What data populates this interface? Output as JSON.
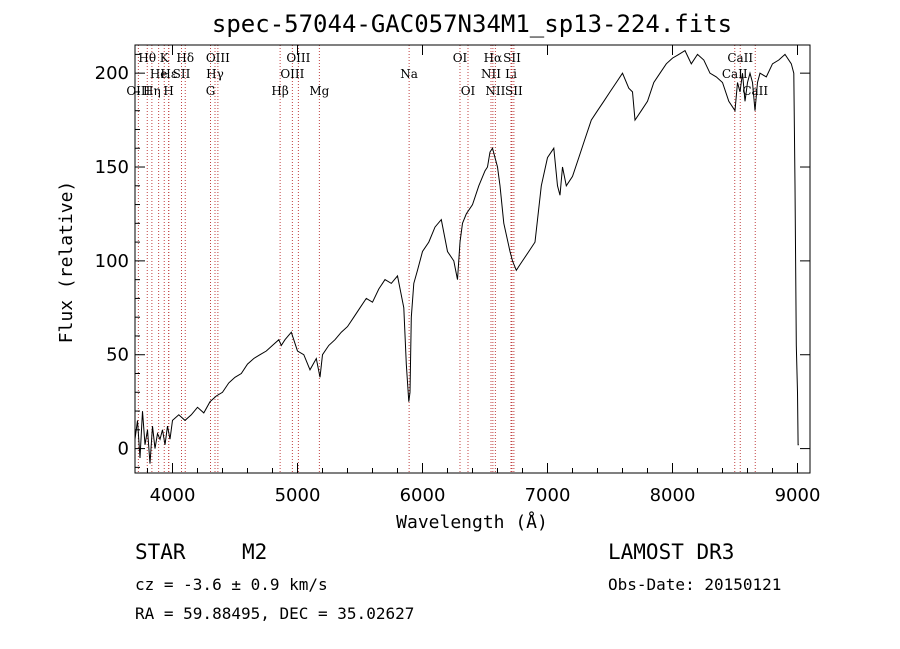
{
  "chart_data": {
    "type": "line",
    "title": "spec-57044-GAC057N34M1_sp13-224.fits",
    "xlabel": "Wavelength (Å)",
    "ylabel": "Flux (relative)",
    "xlim": [
      3700,
      9100
    ],
    "ylim": [
      -13,
      215
    ],
    "xticks": [
      4000,
      5000,
      6000,
      7000,
      8000,
      9000
    ],
    "yticks": [
      0,
      50,
      100,
      150,
      200
    ],
    "series": [
      {
        "name": "spectrum",
        "x": [
          3700,
          3720,
          3740,
          3760,
          3780,
          3800,
          3820,
          3840,
          3860,
          3880,
          3900,
          3920,
          3940,
          3960,
          3980,
          4000,
          4050,
          4100,
          4150,
          4200,
          4250,
          4300,
          4350,
          4400,
          4450,
          4500,
          4550,
          4600,
          4650,
          4700,
          4750,
          4800,
          4850,
          4870,
          4900,
          4950,
          5000,
          5050,
          5100,
          5150,
          5180,
          5200,
          5250,
          5300,
          5350,
          5400,
          5450,
          5500,
          5550,
          5600,
          5650,
          5700,
          5750,
          5800,
          5850,
          5870,
          5890,
          5900,
          5910,
          5930,
          5960,
          6000,
          6050,
          6100,
          6150,
          6200,
          6250,
          6280,
          6300,
          6320,
          6350,
          6400,
          6450,
          6500,
          6520,
          6540,
          6560,
          6580,
          6600,
          6620,
          6650,
          6700,
          6720,
          6750,
          6780,
          6800,
          6850,
          6900,
          6950,
          7000,
          7050,
          7080,
          7100,
          7120,
          7150,
          7200,
          7250,
          7300,
          7350,
          7400,
          7450,
          7500,
          7550,
          7600,
          7650,
          7680,
          7700,
          7750,
          7800,
          7850,
          7900,
          7950,
          8000,
          8050,
          8100,
          8150,
          8200,
          8250,
          8300,
          8350,
          8400,
          8450,
          8500,
          8520,
          8540,
          8560,
          8580,
          8600,
          8620,
          8640,
          8660,
          8680,
          8700,
          8750,
          8800,
          8850,
          8900,
          8950,
          8970,
          8980,
          8990,
          9000,
          9005,
          9010
        ],
        "y": [
          5,
          15,
          -5,
          20,
          2,
          10,
          -8,
          12,
          0,
          8,
          5,
          10,
          2,
          12,
          5,
          15,
          18,
          15,
          18,
          22,
          19,
          25,
          28,
          30,
          35,
          38,
          40,
          45,
          48,
          50,
          52,
          55,
          58,
          55,
          58,
          62,
          52,
          50,
          42,
          48,
          38,
          50,
          55,
          58,
          62,
          65,
          70,
          75,
          80,
          78,
          85,
          90,
          88,
          92,
          75,
          45,
          25,
          30,
          70,
          88,
          95,
          105,
          110,
          118,
          122,
          105,
          100,
          90,
          110,
          120,
          125,
          130,
          140,
          148,
          150,
          158,
          160,
          155,
          150,
          140,
          120,
          105,
          100,
          95,
          98,
          100,
          105,
          110,
          140,
          155,
          160,
          140,
          135,
          150,
          140,
          145,
          155,
          165,
          175,
          180,
          185,
          190,
          195,
          200,
          192,
          190,
          175,
          180,
          185,
          195,
          200,
          205,
          208,
          210,
          212,
          205,
          210,
          207,
          200,
          198,
          195,
          185,
          180,
          195,
          190,
          200,
          185,
          195,
          200,
          195,
          180,
          195,
          200,
          198,
          205,
          207,
          210,
          205,
          200,
          140,
          55,
          30,
          2,
          2
        ]
      }
    ],
    "spectral_lines": [
      {
        "label": "OIII",
        "x": 3727,
        "row": 3
      },
      {
        "label": "Hθ",
        "x": 3798,
        "row": 1
      },
      {
        "label": "Hη",
        "x": 3835,
        "row": 3
      },
      {
        "label": "He",
        "x": 3889,
        "row": 2
      },
      {
        "label": "K",
        "x": 3934,
        "row": 1
      },
      {
        "label": "H",
        "x": 3969,
        "row": 3
      },
      {
        "label": "Hε",
        "x": 3970,
        "row": 2
      },
      {
        "label": "SII",
        "x": 4072,
        "row": 2
      },
      {
        "label": "Hδ",
        "x": 4102,
        "row": 1
      },
      {
        "label": "G",
        "x": 4304,
        "row": 3
      },
      {
        "label": "Hγ",
        "x": 4340,
        "row": 2
      },
      {
        "label": "OIII",
        "x": 4363,
        "row": 1
      },
      {
        "label": "Hβ",
        "x": 4861,
        "row": 3
      },
      {
        "label": "OIII",
        "x": 4959,
        "row": 2
      },
      {
        "label": "OIII",
        "x": 5007,
        "row": 1
      },
      {
        "label": "Mg",
        "x": 5175,
        "row": 3
      },
      {
        "label": "Na",
        "x": 5893,
        "row": 2
      },
      {
        "label": "OI",
        "x": 6300,
        "row": 1
      },
      {
        "label": "OI",
        "x": 6364,
        "row": 3
      },
      {
        "label": "NII",
        "x": 6548,
        "row": 2
      },
      {
        "label": "Hα",
        "x": 6563,
        "row": 1
      },
      {
        "label": "NII",
        "x": 6583,
        "row": 3
      },
      {
        "label": "Li",
        "x": 6708,
        "row": 2
      },
      {
        "label": "SII",
        "x": 6716,
        "row": 1
      },
      {
        "label": "SII",
        "x": 6731,
        "row": 3
      },
      {
        "label": "CaII",
        "x": 8498,
        "row": 2
      },
      {
        "label": "CaII",
        "x": 8542,
        "row": 1
      },
      {
        "label": "CaII",
        "x": 8662,
        "row": 3
      }
    ]
  },
  "footer": {
    "object_class": "STAR",
    "subclass": "M2",
    "cz": "cz = -3.6 ± 0.9 km/s",
    "coords": "RA =  59.88495, DEC =  35.02627",
    "survey": "LAMOST DR3",
    "obs_date": "Obs-Date: 20150121"
  },
  "colors": {
    "line": "#000000",
    "marker": "#c04040",
    "axes": "#000000"
  }
}
